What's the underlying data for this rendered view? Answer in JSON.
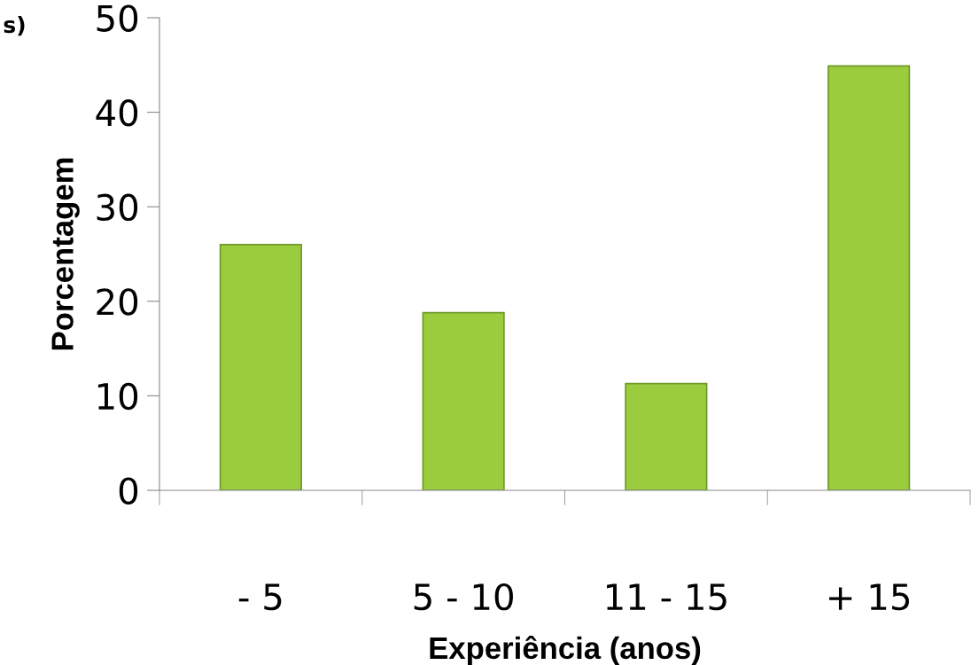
{
  "chart_data": {
    "type": "bar",
    "categories": [
      "- 5",
      "5 - 10",
      "11 - 15",
      "+ 15"
    ],
    "values": [
      26.0,
      18.8,
      11.3,
      44.9
    ],
    "color": "#9bcc3e",
    "xlabel": "Experiência (anos)",
    "ylabel": "Porcentagem",
    "annotations": [
      "s)"
    ],
    "ylim": [
      0,
      50
    ],
    "yticks": [
      0,
      10,
      20,
      30,
      40,
      50
    ],
    "grid": false,
    "legend": false
  }
}
